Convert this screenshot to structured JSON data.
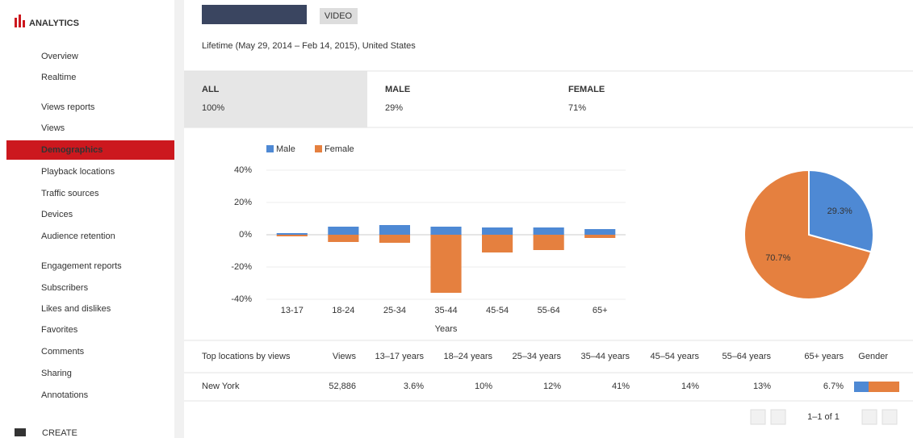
{
  "sidebar": {
    "title": "ANALYTICS",
    "items": [
      {
        "label": "Overview"
      },
      {
        "label": "Realtime"
      },
      {
        "label": "Views reports",
        "heading": true
      },
      {
        "label": "Views"
      },
      {
        "label": "Demographics",
        "selected": true
      },
      {
        "label": "Playback locations"
      },
      {
        "label": "Traffic sources"
      },
      {
        "label": "Devices"
      },
      {
        "label": "Audience retention"
      },
      {
        "label": "Engagement reports",
        "heading": true
      },
      {
        "label": "Subscribers"
      },
      {
        "label": "Likes and dislikes"
      },
      {
        "label": "Favorites"
      },
      {
        "label": "Comments"
      },
      {
        "label": "Sharing"
      },
      {
        "label": "Annotations"
      }
    ],
    "footer": "CREATE"
  },
  "header": {
    "button": "VIDEO",
    "title": "Lifetime (May 29, 2014 – Feb 14, 2015), United States"
  },
  "tabs": [
    {
      "label": "ALL",
      "value": "100%"
    },
    {
      "label": "MALE",
      "value": "29%"
    },
    {
      "label": "FEMALE",
      "value": "71%"
    }
  ],
  "chart_data": [
    {
      "type": "bar",
      "categories": [
        "13-17",
        "18-24",
        "25-34",
        "35-44",
        "45-54",
        "55-64",
        "65+"
      ],
      "series": [
        {
          "name": "Male",
          "color": "#4e89d4",
          "values": [
            1,
            5,
            6,
            5,
            4.5,
            4.5,
            3.5
          ]
        },
        {
          "name": "Female",
          "color": "#e5803f",
          "values": [
            -1,
            -4.5,
            -5,
            -36,
            -11,
            -9.5,
            -2
          ]
        }
      ],
      "ylim": [
        -40,
        40
      ],
      "yticks": [
        {
          "value": 40,
          "label": "40%"
        },
        {
          "value": 20,
          "label": "20%"
        },
        {
          "value": 0,
          "label": "0%"
        },
        {
          "value": -20,
          "label": "-20%"
        },
        {
          "value": -40,
          "label": "-40%"
        }
      ],
      "x_label": "Years",
      "grid": true
    },
    {
      "type": "pie",
      "values": [
        29.3,
        70.7
      ],
      "value_labels": [
        "29.3%",
        "70.7%"
      ],
      "colors": [
        "#4e89d4",
        "#e5803f"
      ]
    }
  ],
  "table": {
    "columns": [
      "Top locations by views",
      "Views",
      "13–17 years",
      "18–24 years",
      "25–34 years",
      "35–44 years",
      "45–54 years",
      "55–64 years",
      "65+ years",
      "Gender"
    ],
    "rows": [
      [
        "New York",
        "52,886",
        "3.6%",
        "10%",
        "12%",
        "41%",
        "14%",
        "13%",
        "6.7%"
      ]
    ]
  },
  "pagination": "1–1 of 1"
}
